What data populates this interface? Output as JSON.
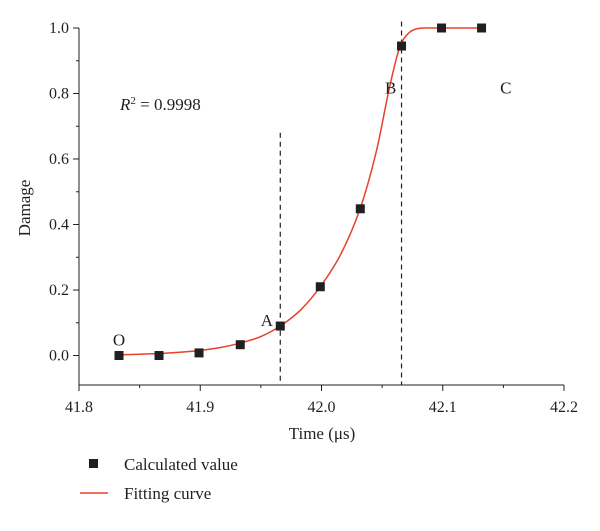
{
  "chart_data": {
    "type": "scatter",
    "xlabel": "Time (μs)",
    "ylabel": "Damage",
    "xlim": [
      41.8,
      42.2
    ],
    "ylim": [
      -0.09,
      1.0
    ],
    "x_ticks": [
      "41.8",
      "41.9",
      "42.0",
      "42.1",
      "42.2"
    ],
    "y_ticks": [
      "0.0",
      "0.2",
      "0.4",
      "0.6",
      "0.8",
      "1.0"
    ],
    "grid": false,
    "legend_position": "bottom-left",
    "series": [
      {
        "name": "Calculated value",
        "kind": "markers",
        "marker": "square",
        "color": "#231f20",
        "x": [
          41.833,
          41.866,
          41.899,
          41.933,
          41.966,
          41.999,
          42.032,
          42.066,
          42.099,
          42.132
        ],
        "y": [
          0.0,
          0.0,
          0.008,
          0.033,
          0.09,
          0.21,
          0.448,
          0.945,
          1.0,
          1.0
        ]
      },
      {
        "name": "Fitting curve",
        "kind": "line",
        "color": "#e8412b",
        "x": [
          41.833,
          41.85,
          41.866,
          41.883,
          41.899,
          41.916,
          41.933,
          41.95,
          41.966,
          41.983,
          41.999,
          42.016,
          42.032,
          42.045,
          42.055,
          42.062,
          42.066,
          42.072,
          42.078,
          42.085,
          42.099,
          42.132
        ],
        "y": [
          0.002,
          0.004,
          0.006,
          0.01,
          0.015,
          0.024,
          0.038,
          0.058,
          0.09,
          0.14,
          0.21,
          0.31,
          0.45,
          0.62,
          0.8,
          0.91,
          0.955,
          0.985,
          0.997,
          1.0,
          1.0,
          1.0
        ]
      }
    ],
    "vlines": [
      41.966,
      42.066
    ],
    "annotations": [
      {
        "text": "O",
        "x": 41.833,
        "y": 0.03
      },
      {
        "text": "A",
        "x": 41.955,
        "y": 0.09
      },
      {
        "text": "B",
        "x": 42.057,
        "y": 0.8
      },
      {
        "text": "C",
        "x": 42.152,
        "y": 0.8
      }
    ],
    "r2_label": {
      "prefix": "R",
      "exponent": "2",
      "value": " = 0.9998"
    }
  }
}
